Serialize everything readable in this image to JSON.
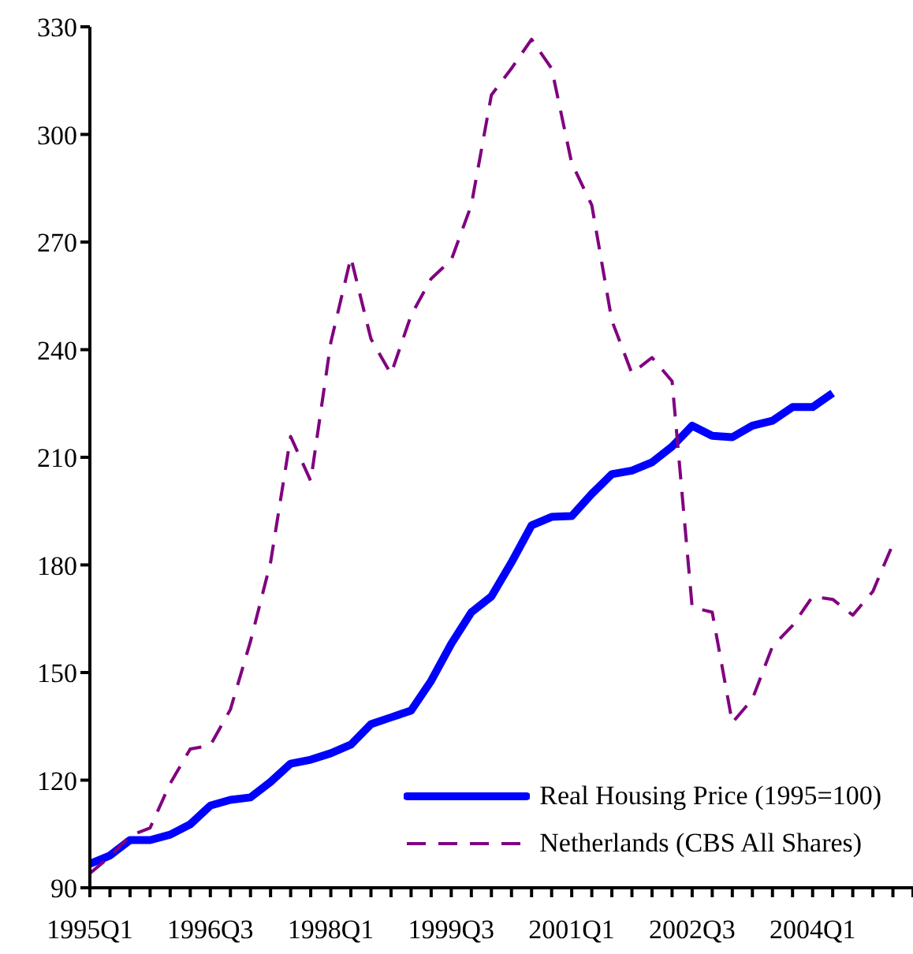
{
  "chart_data": {
    "type": "line",
    "categories": [
      "1995Q1",
      null,
      null,
      null,
      null,
      null,
      "1996Q3",
      null,
      null,
      null,
      null,
      null,
      "1998Q1",
      null,
      null,
      null,
      null,
      null,
      "1999Q3",
      null,
      null,
      null,
      null,
      null,
      "2001Q1",
      null,
      null,
      null,
      null,
      null,
      "2002Q3",
      null,
      null,
      null,
      null,
      null,
      "2004Q1",
      null,
      null,
      null,
      null,
      null
    ],
    "series": [
      {
        "name": "Real Housing Price (1995=100)",
        "color": "#0000ff",
        "line_style": "solid",
        "values": [
          96.7,
          99,
          103.3,
          103.3,
          104.8,
          107.7,
          112.9,
          114.5,
          115.2,
          119.5,
          124.6,
          125.7,
          127.5,
          129.9,
          135.6,
          137.5,
          139.4,
          147.7,
          158,
          166.8,
          171.2,
          180.7,
          191,
          193.4,
          193.6,
          199.8,
          205.3,
          206.3,
          208.6,
          213,
          218.8,
          216,
          215.6,
          218.8,
          220.2,
          224,
          224,
          227.9,
          null,
          null,
          null,
          null
        ]
      },
      {
        "name": "Netherlands (CBS All Shares)",
        "color": "#800080",
        "line_style": "dashed",
        "values": [
          94,
          98.7,
          104.5,
          106.7,
          119.1,
          128.7,
          129.7,
          139.7,
          158.7,
          180.7,
          215.8,
          203.4,
          242,
          265.7,
          243,
          233.2,
          249.6,
          259.8,
          265,
          280.3,
          311,
          318.4,
          326.5,
          318.4,
          292,
          280.3,
          248.1,
          233.4,
          237.8,
          231.2,
          168.2,
          166.8,
          136,
          142.6,
          157.3,
          163.1,
          171.2,
          170.4,
          166,
          172.6,
          185.8,
          null
        ]
      }
    ],
    "ylim": [
      90,
      330
    ],
    "yticks": [
      90,
      120,
      150,
      180,
      210,
      240,
      270,
      300,
      330
    ],
    "legend": "bottom right",
    "marker": "none"
  }
}
